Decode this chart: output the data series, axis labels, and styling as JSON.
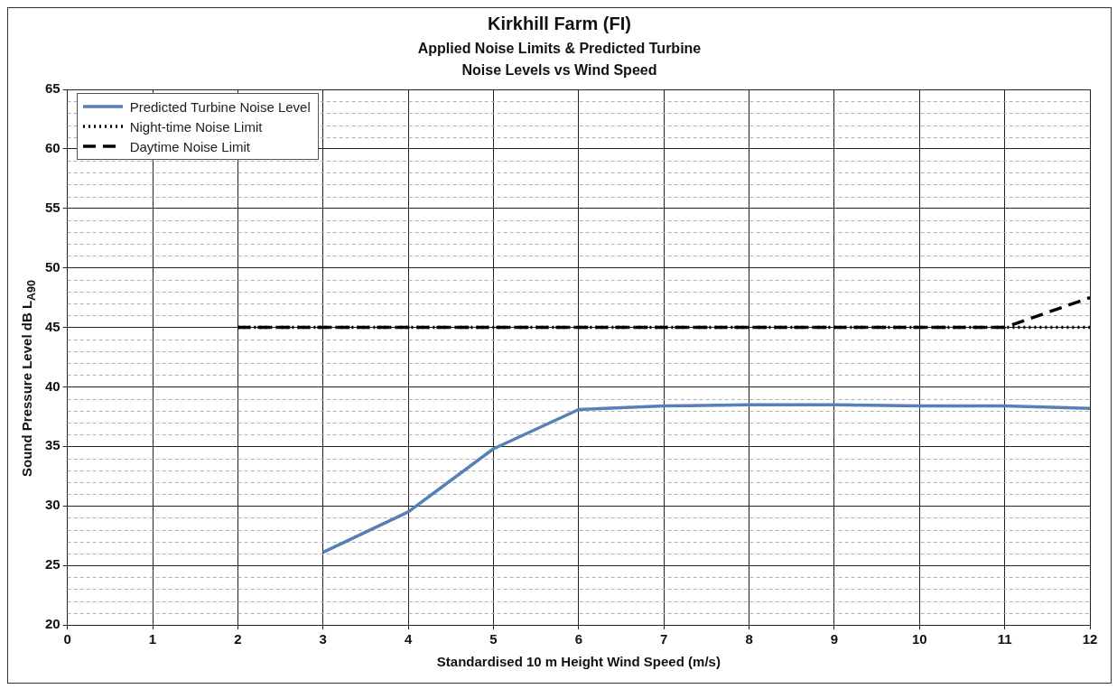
{
  "chart_data": {
    "type": "line",
    "title": "Kirkhill Farm (FI)",
    "subtitle": "Applied Noise Limits & Predicted Turbine Noise Levels vs Wind Speed",
    "xlabel": "Standardised 10 m Height Wind Speed (m/s)",
    "ylabel": "Sound Pressure Level dB L$_{A90}$",
    "xlim": [
      0,
      12
    ],
    "xticks": [
      0,
      1,
      2,
      3,
      4,
      5,
      6,
      7,
      8,
      9,
      10,
      11,
      12
    ],
    "ylim": [
      20,
      65
    ],
    "yticks": [
      20,
      {
        "value": 21,
        "label": null
      },
      {
        "value": 22,
        "label": null
      },
      {
        "value": 23,
        "label": null
      },
      {
        "value": 24,
        "label": null
      },
      25,
      {
        "value": 26,
        "label": null
      },
      {
        "value": 27,
        "label": null
      },
      {
        "value": 28,
        "label": null
      },
      {
        "value": 29,
        "label": null
      },
      30,
      {
        "value": 31,
        "label": null
      },
      {
        "value": 32,
        "label": null
      },
      {
        "value": 33,
        "label": null
      },
      {
        "value": 34,
        "label": null
      },
      35,
      {
        "value": 36,
        "label": null
      },
      {
        "value": 37,
        "label": null
      },
      {
        "value": 38,
        "label": null
      },
      {
        "value": 39,
        "label": null
      },
      40,
      {
        "value": 41,
        "label": null
      },
      {
        "value": 42,
        "label": null
      },
      {
        "value": 43,
        "label": null
      },
      {
        "value": 44,
        "label": null
      },
      45,
      {
        "value": 46,
        "label": null
      },
      {
        "value": 47,
        "label": null
      },
      {
        "value": 48,
        "label": null
      },
      {
        "value": 49,
        "label": null
      },
      50,
      {
        "value": 51,
        "label": null
      },
      {
        "value": 52,
        "label": null
      },
      {
        "value": 53,
        "label": null
      },
      {
        "value": 54,
        "label": null
      },
      55,
      {
        "value": 56,
        "label": null
      },
      {
        "value": 57,
        "label": null
      },
      {
        "value": 58,
        "label": null
      },
      {
        "value": 59,
        "label": null
      },
      60,
      {
        "value": 61,
        "label": null
      },
      {
        "value": 62,
        "label": null
      },
      {
        "value": 63,
        "label": null
      },
      {
        "value": 64,
        "label": null
      },
      65
    ],
    "grid": true,
    "legend": "top left",
    "marker": "none",
    "series": [
      {
        "name": "Predicted Turbine Noise Level",
        "color": "#5581b8",
        "line_style": "solid",
        "x": [
          3,
          4,
          5,
          6,
          7,
          8,
          9,
          10,
          11,
          12
        ],
        "values": [
          26.1,
          29.5,
          34.8,
          38.1,
          38.4,
          38.5,
          38.5,
          38.4,
          38.4,
          38.2
        ]
      },
      {
        "name": "Night-time Noise Limit",
        "color": "#000000",
        "line_style": "dotted",
        "x": [
          2,
          3,
          4,
          5,
          6,
          7,
          8,
          9,
          10,
          11,
          12
        ],
        "values": [
          45,
          45,
          45,
          45,
          45,
          45,
          45,
          45,
          45,
          45,
          45
        ]
      },
      {
        "name": "Daytime Noise Limit",
        "color": "#000000",
        "line_style": "dashed",
        "x": [
          2,
          3,
          4,
          5,
          6,
          7,
          8,
          9,
          10,
          11,
          12
        ],
        "values": [
          45,
          45,
          45,
          45,
          45,
          45,
          45,
          45,
          45,
          45,
          47.5
        ]
      }
    ]
  }
}
